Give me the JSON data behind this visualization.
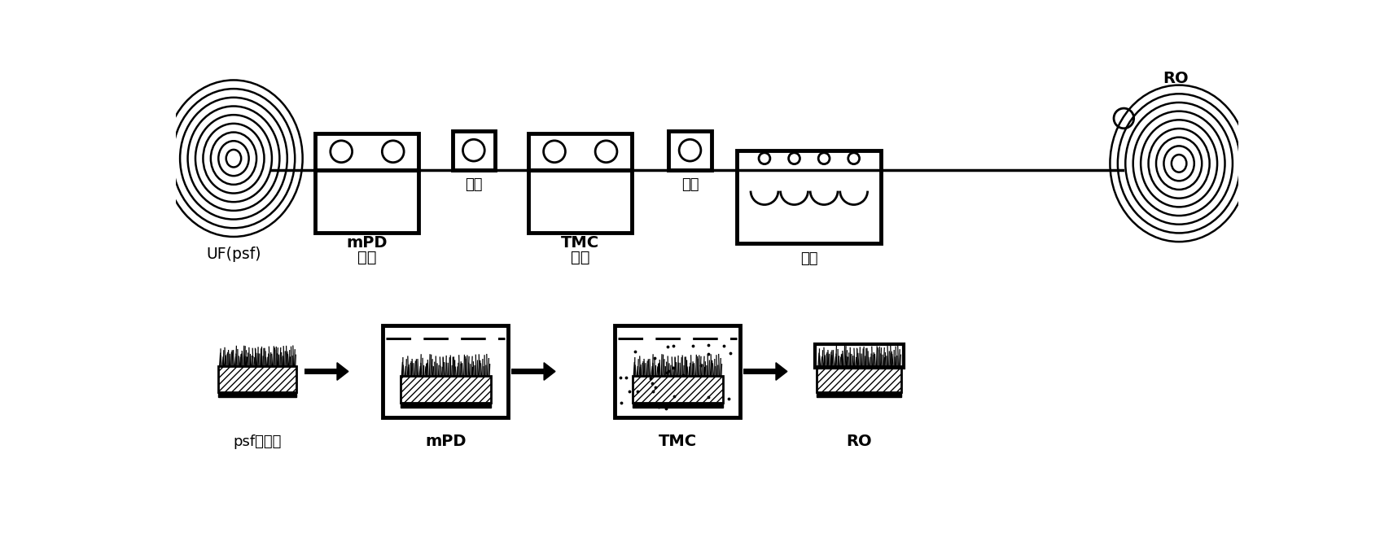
{
  "bg_color": "#ffffff",
  "line_color": "#000000",
  "top_row": {
    "labels": {
      "UF": "UF(psf)",
      "mPD_bath": [
        "mPD",
        "浸渍"
      ],
      "dry1": "干燥",
      "TMC_bath": [
        "TMC",
        "浸渍"
      ],
      "dry2": "干燥",
      "wash": "清洗",
      "RO": "RO"
    }
  },
  "bottom_row": {
    "labels": {
      "psf": "psf支撑层",
      "mPD": "mPD",
      "TMC": "TMC",
      "RO": "RO"
    }
  }
}
